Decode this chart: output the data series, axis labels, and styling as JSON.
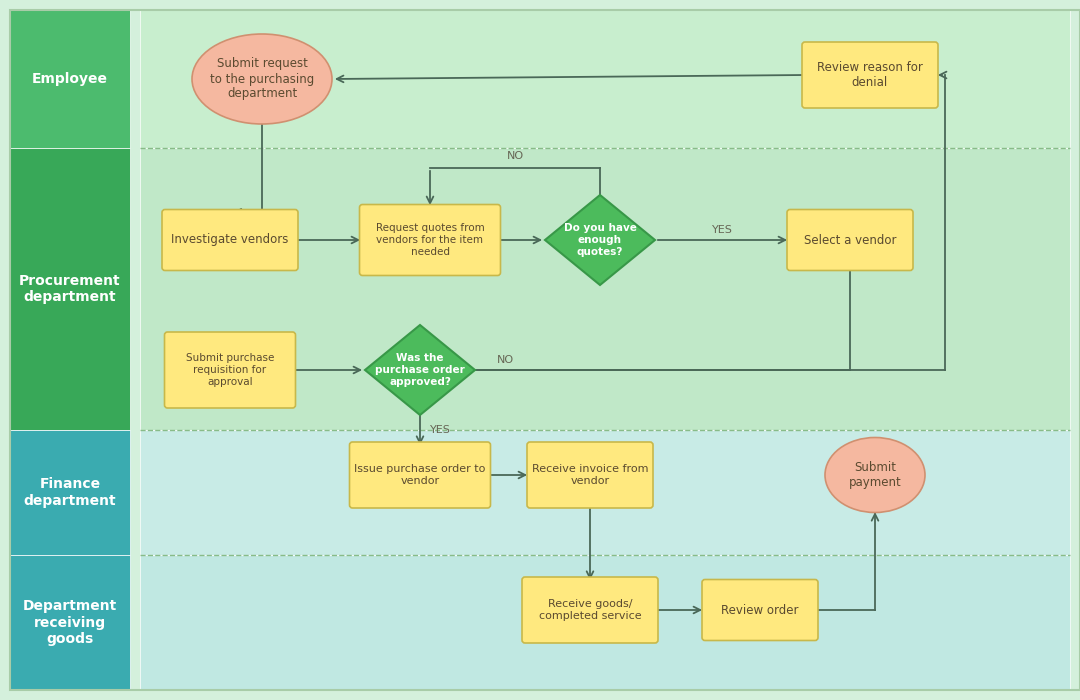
{
  "bg_color": "#d4f0dc",
  "lane_label_colors_top": [
    "#4cbb6e",
    "#38a858",
    "#3aabb0",
    "#3aabb0"
  ],
  "lane_content_colors": [
    "#c4eece",
    "#b8e8c4",
    "#c0e8e0",
    "#b8e4dc"
  ],
  "lane_labels": [
    "Employee",
    "Procurement\ndepartment",
    "Finance\ndepartment",
    "Department\nreceiving\ngoods"
  ],
  "arrow_color": "#4a6858",
  "text_color": "#5a4a30",
  "dashed_color": "#88bb88",
  "node_rect_color": "#ffe97f",
  "node_ellipse_color": "#f5b8a0",
  "node_diamond_color": "#4cbb5c",
  "node_border_rect": "#c8b84a",
  "node_border_ellipse": "#d09070",
  "node_border_diamond": "#389848"
}
